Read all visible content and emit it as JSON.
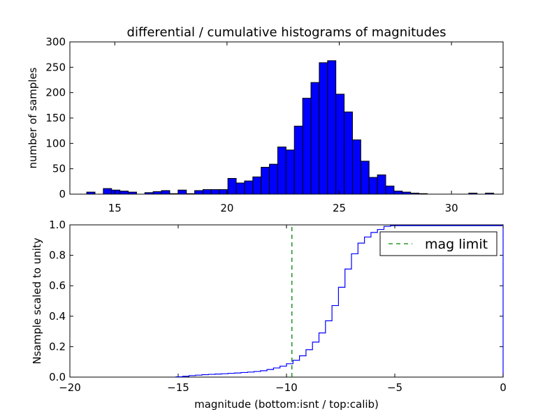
{
  "chart_data": [
    {
      "type": "bar",
      "title": "differential / cumulative histograms of magnitudes",
      "xlabel": "",
      "ylabel": "number of samples",
      "xlim": [
        13.0,
        32.3
      ],
      "ylim": [
        0,
        300
      ],
      "xticks": [
        15,
        20,
        25,
        30
      ],
      "yticks": [
        0,
        50,
        100,
        150,
        200,
        250,
        300
      ],
      "grid": false,
      "bar_color": "#0000ff",
      "bins": [
        [
          13.75,
          14.12,
          4
        ],
        [
          14.12,
          14.49,
          0
        ],
        [
          14.49,
          14.86,
          11
        ],
        [
          14.86,
          15.23,
          8
        ],
        [
          15.23,
          15.6,
          6
        ],
        [
          15.6,
          15.97,
          4
        ],
        [
          15.97,
          16.34,
          0
        ],
        [
          16.34,
          16.71,
          3
        ],
        [
          16.71,
          17.08,
          5
        ],
        [
          17.08,
          17.45,
          7
        ],
        [
          17.45,
          17.82,
          1
        ],
        [
          17.82,
          18.19,
          8
        ],
        [
          18.19,
          18.56,
          1
        ],
        [
          18.56,
          18.93,
          7
        ],
        [
          18.93,
          19.3,
          9
        ],
        [
          19.3,
          19.67,
          9
        ],
        [
          19.67,
          20.04,
          9
        ],
        [
          20.04,
          20.41,
          31
        ],
        [
          20.41,
          20.78,
          22
        ],
        [
          20.78,
          21.15,
          26
        ],
        [
          21.15,
          21.52,
          34
        ],
        [
          21.52,
          21.89,
          53
        ],
        [
          21.89,
          22.26,
          59
        ],
        [
          22.26,
          22.63,
          93
        ],
        [
          22.63,
          23.0,
          87
        ],
        [
          23.0,
          23.37,
          134
        ],
        [
          23.37,
          23.74,
          189
        ],
        [
          23.74,
          24.11,
          220
        ],
        [
          24.11,
          24.48,
          259
        ],
        [
          24.48,
          24.85,
          263
        ],
        [
          24.85,
          25.22,
          197
        ],
        [
          25.22,
          25.59,
          162
        ],
        [
          25.59,
          25.96,
          107
        ],
        [
          25.96,
          26.33,
          65
        ],
        [
          26.33,
          26.7,
          33
        ],
        [
          26.7,
          27.07,
          38
        ],
        [
          27.07,
          27.44,
          16
        ],
        [
          27.44,
          27.81,
          6
        ],
        [
          27.81,
          28.18,
          4
        ],
        [
          28.18,
          28.55,
          2
        ],
        [
          28.55,
          28.92,
          1
        ],
        [
          28.92,
          29.29,
          0
        ],
        [
          29.29,
          29.66,
          0
        ],
        [
          29.66,
          30.03,
          0
        ],
        [
          30.03,
          30.4,
          0
        ],
        [
          30.4,
          30.77,
          0
        ],
        [
          30.77,
          31.14,
          2
        ],
        [
          31.14,
          31.51,
          0
        ],
        [
          31.51,
          31.88,
          2
        ]
      ]
    },
    {
      "type": "line",
      "xlabel": "magnitude (bottom:isnt / top:calib)",
      "ylabel": "Nsample scaled to unity",
      "xlim": [
        -20,
        0
      ],
      "ylim": [
        0.0,
        1.0
      ],
      "xticks": [
        -20,
        -15,
        -10,
        -5,
        0
      ],
      "yticks": [
        0.0,
        0.2,
        0.4,
        0.6,
        0.8,
        1.0
      ],
      "grid": false,
      "legend": {
        "location": "upper right",
        "entries": [
          "mag limit"
        ]
      },
      "series": [
        {
          "style": "step",
          "color": "#0000ff",
          "x": [
            -15.1,
            -14.8,
            -14.5,
            -14.2,
            -13.9,
            -13.6,
            -13.3,
            -13.0,
            -12.7,
            -12.4,
            -12.1,
            -11.8,
            -11.5,
            -11.2,
            -10.9,
            -10.6,
            -10.3,
            -10.0,
            -9.7,
            -9.4,
            -9.1,
            -8.8,
            -8.5,
            -8.2,
            -7.9,
            -7.6,
            -7.3,
            -7.0,
            -6.7,
            -6.4,
            -6.1,
            -5.8,
            -5.5,
            -5.2,
            -0.05,
            0
          ],
          "y": [
            0.002,
            0.005,
            0.01,
            0.013,
            0.016,
            0.018,
            0.02,
            0.022,
            0.025,
            0.027,
            0.03,
            0.033,
            0.037,
            0.042,
            0.05,
            0.06,
            0.072,
            0.088,
            0.11,
            0.14,
            0.18,
            0.23,
            0.29,
            0.37,
            0.47,
            0.59,
            0.71,
            0.81,
            0.88,
            0.92,
            0.95,
            0.97,
            0.99,
            0.995,
            1.0,
            0.0
          ]
        },
        {
          "name": "mag limit",
          "style": "dashed",
          "color": "#008000",
          "x": [
            -9.75,
            -9.75
          ],
          "y": [
            0.0,
            1.0
          ]
        }
      ]
    }
  ]
}
